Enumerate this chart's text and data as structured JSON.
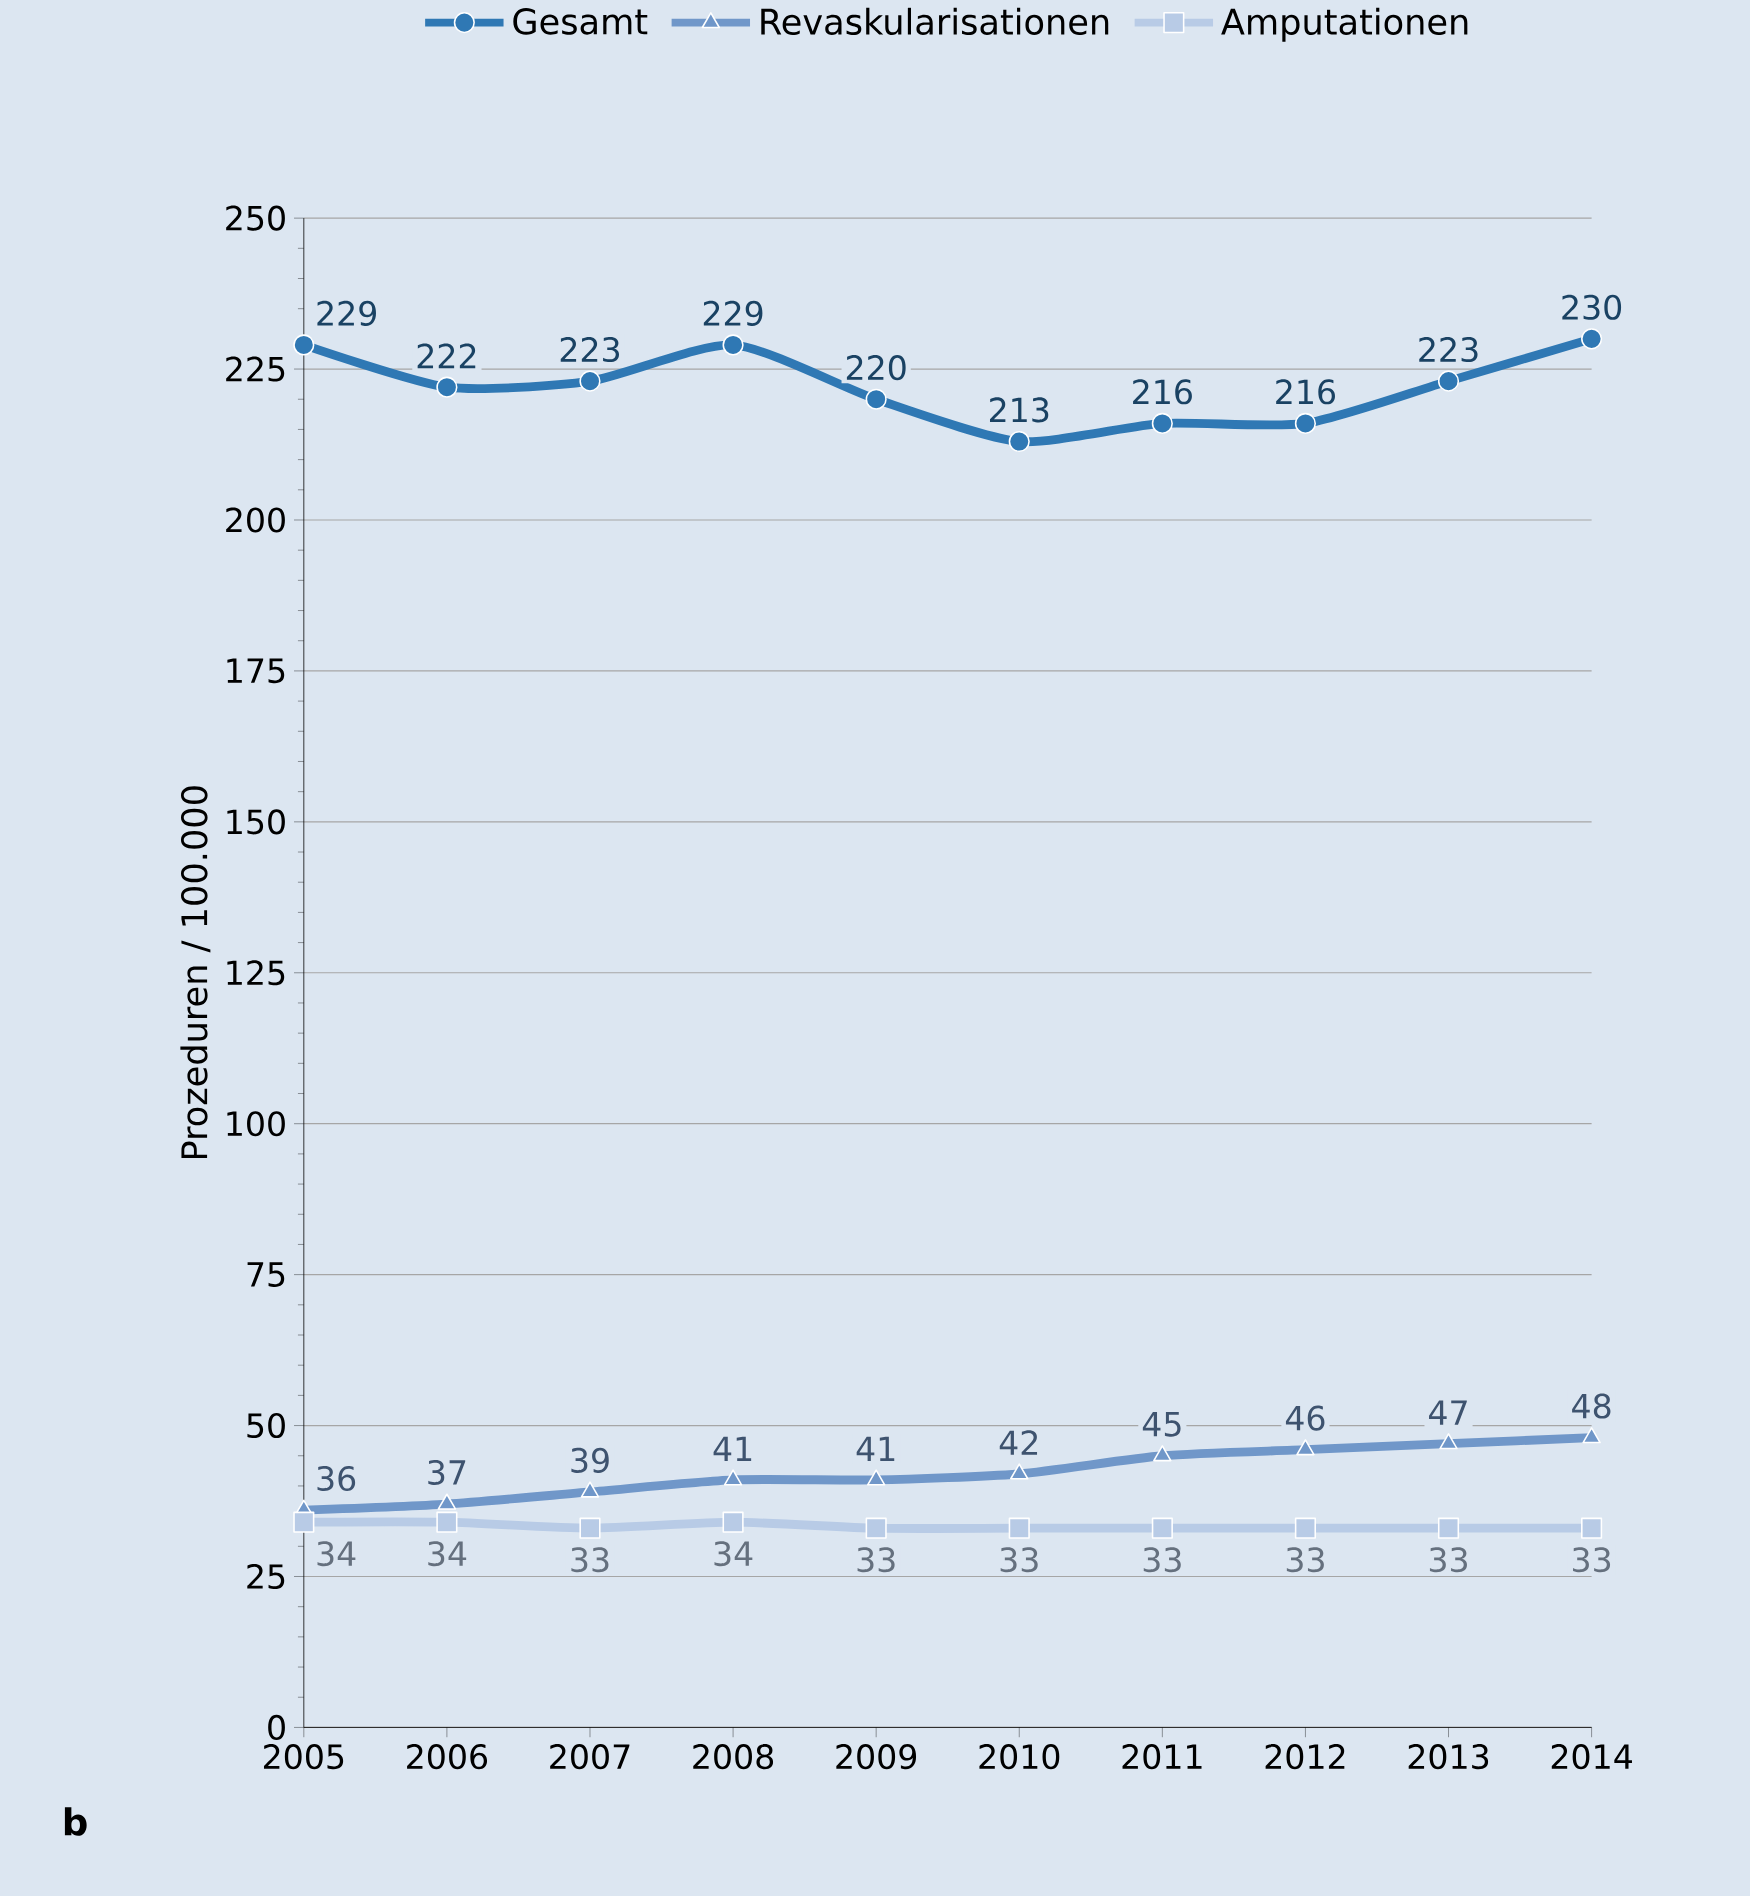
{
  "chart_data": {
    "type": "line",
    "ylabel": "Prozeduren / 100.000",
    "categories": [
      "2005",
      "2006",
      "2007",
      "2008",
      "2009",
      "2010",
      "2011",
      "2012",
      "2013",
      "2014"
    ],
    "series": [
      {
        "name": "Gesamt",
        "color": "#2f78b4",
        "marker": "circle",
        "values": [
          229,
          222,
          223,
          229,
          220,
          213,
          216,
          216,
          223,
          230
        ]
      },
      {
        "name": "Revaskularisationen",
        "color": "#7097c9",
        "marker": "triangle",
        "values": [
          36,
          37,
          39,
          41,
          41,
          42,
          45,
          46,
          47,
          48
        ]
      },
      {
        "name": "Amputationen",
        "color": "#b8cbe6",
        "marker": "square",
        "values": [
          34,
          34,
          33,
          34,
          33,
          33,
          33,
          33,
          33,
          33
        ]
      }
    ],
    "ylim": [
      0,
      250
    ],
    "yticks": [
      0,
      25,
      50,
      75,
      100,
      125,
      150,
      175,
      200,
      225,
      250
    ],
    "grid": "y",
    "legend": "top",
    "data_labels": true,
    "annotations": [
      "b"
    ]
  }
}
